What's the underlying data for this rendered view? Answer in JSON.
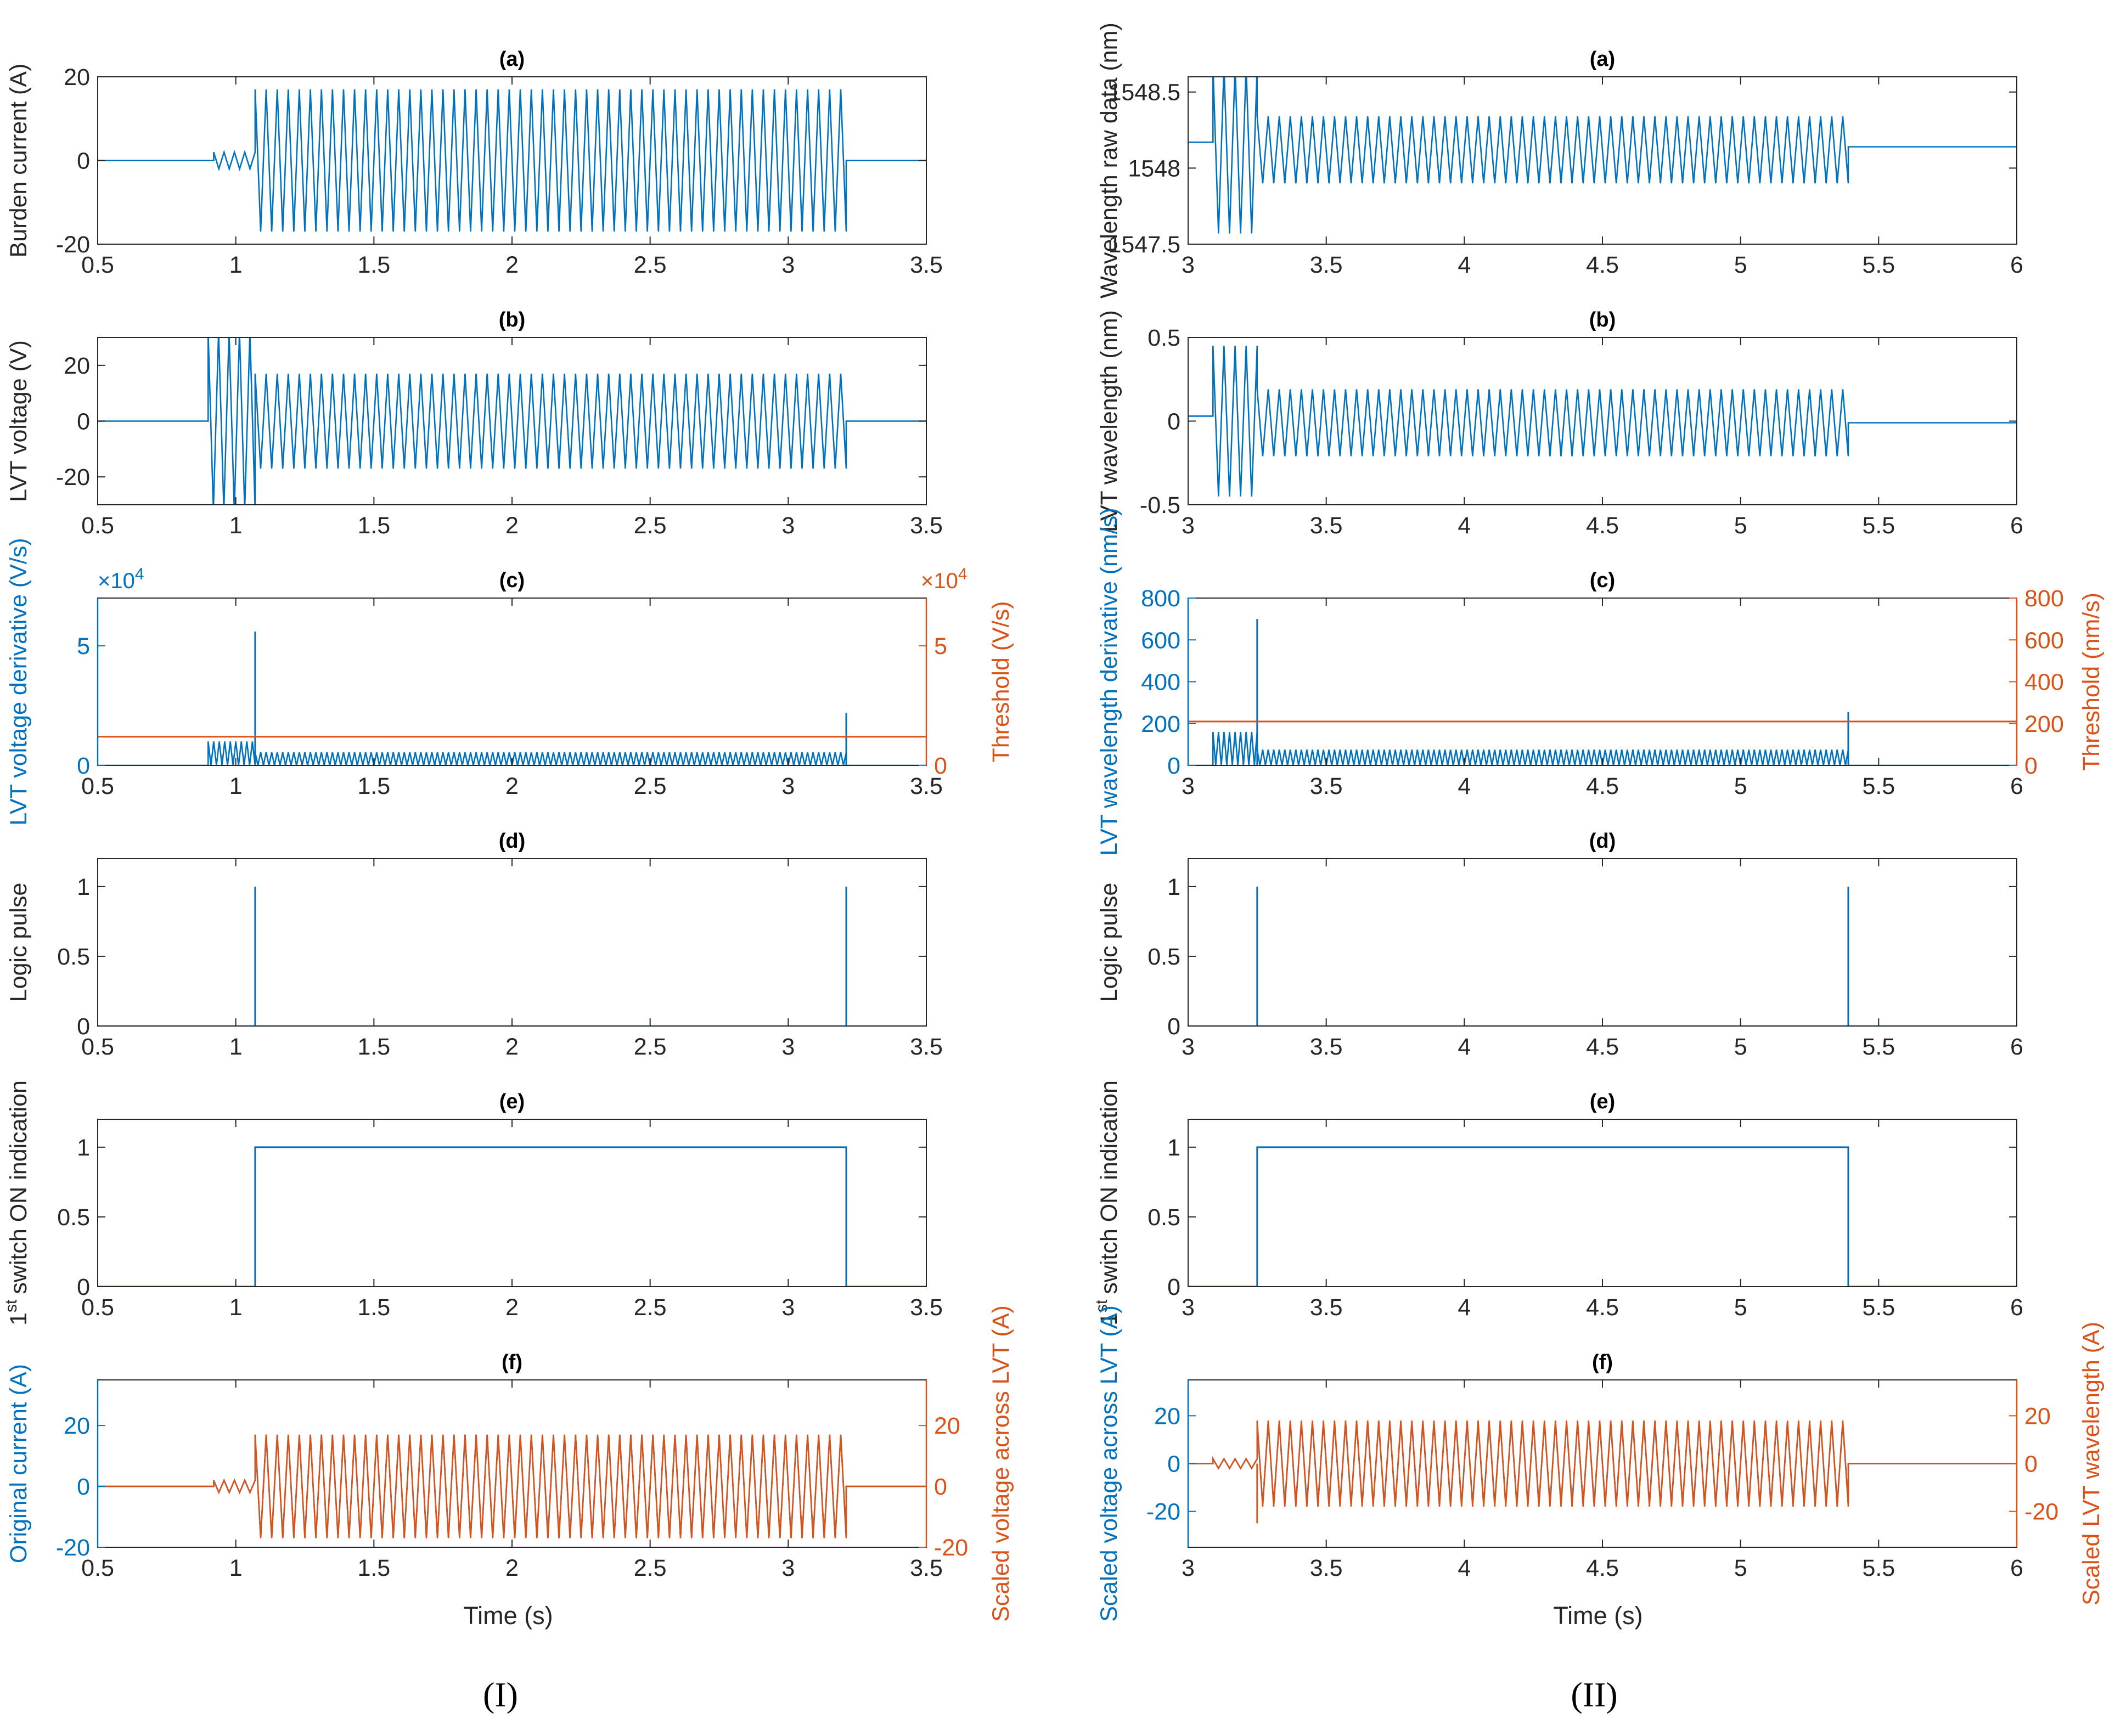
{
  "colors": {
    "blue": "#0072BD",
    "orange": "#D95319",
    "axis": "#262626"
  },
  "columns": [
    {
      "caption": "(I)",
      "xlim": [
        0.5,
        3.5
      ],
      "xticks": [
        "0.5",
        "1",
        "1.5",
        "2",
        "2.5",
        "3",
        "3.5"
      ],
      "xlabel": "Time (s)"
    },
    {
      "caption": "(II)",
      "xlim": [
        3,
        6
      ],
      "xticks": [
        "3",
        "3.5",
        "4",
        "4.5",
        "5",
        "5.5",
        "6"
      ],
      "xlabel": "Time (s)"
    }
  ],
  "chart_data": [
    {
      "id": "I-a",
      "type": "line",
      "title": "(a)",
      "ylabel": "Burden current (A)",
      "ylim": [
        -20,
        20
      ],
      "yticks": [
        "-20",
        "0",
        "20"
      ],
      "xlim": [
        0.5,
        3.5
      ],
      "series": [
        {
          "name": "Burden current",
          "color": "#0072BD",
          "kind": "osc",
          "segments": [
            {
              "from": 0.5,
              "to": 0.92,
              "amp": 0
            },
            {
              "from": 0.92,
              "to": 1.07,
              "amp": 2
            },
            {
              "from": 1.07,
              "to": 3.21,
              "amp": 17
            },
            {
              "from": 3.21,
              "to": 3.5,
              "amp": 0
            }
          ]
        }
      ]
    },
    {
      "id": "I-b",
      "type": "line",
      "title": "(b)",
      "ylabel": "LVT voltage (V)",
      "ylim": [
        -30,
        30
      ],
      "yticks": [
        "-20",
        "0",
        "20"
      ],
      "ytickvals": [
        -20,
        0,
        20
      ],
      "xlim": [
        0.5,
        3.5
      ],
      "series": [
        {
          "name": "LVT voltage",
          "color": "#0072BD",
          "kind": "osc",
          "segments": [
            {
              "from": 0.5,
              "to": 0.9,
              "amp": 0
            },
            {
              "from": 0.9,
              "to": 1.07,
              "amp": 32
            },
            {
              "from": 1.07,
              "to": 3.21,
              "amp": 17
            },
            {
              "from": 3.21,
              "to": 3.5,
              "amp": 0
            }
          ]
        }
      ]
    },
    {
      "id": "I-c",
      "type": "line",
      "title": "(c)",
      "ylabel": "LVT voltage derivative (V/s)",
      "ylabel_right": "Threshold (V/s)",
      "ylim": [
        0,
        7
      ],
      "yticks": [
        "0",
        "5"
      ],
      "ytickvals": [
        0,
        5
      ],
      "exponent_left": "×10",
      "exponent_right": "×10",
      "exponent_power": "4",
      "yticks_right": [
        "0",
        "5"
      ],
      "xlim": [
        0.5,
        3.5
      ],
      "series": [
        {
          "name": "LVT voltage derivative",
          "color": "#0072BD",
          "kind": "deriv",
          "segments": [
            {
              "from": 0.5,
              "to": 0.9,
              "amp": 0
            },
            {
              "from": 0.9,
              "to": 1.07,
              "amp": 1.0
            },
            {
              "from": 1.07,
              "to": 3.21,
              "amp": 0.55
            },
            {
              "from": 3.21,
              "to": 3.5,
              "amp": 0
            }
          ],
          "spikes": [
            {
              "x": 1.07,
              "y": 5.6
            },
            {
              "x": 3.21,
              "y": 2.2
            }
          ]
        },
        {
          "name": "Threshold",
          "color": "#D95319",
          "kind": "const",
          "y": 1.2,
          "axis": "right"
        }
      ]
    },
    {
      "id": "I-d",
      "type": "line",
      "title": "(d)",
      "ylabel": "Logic pulse",
      "ylim": [
        0,
        1.2
      ],
      "yticks": [
        "0",
        "0.5",
        "1"
      ],
      "ytickvals": [
        0,
        0.5,
        1
      ],
      "xlim": [
        0.5,
        3.5
      ],
      "series": [
        {
          "name": "Logic pulse",
          "color": "#0072BD",
          "kind": "pulses",
          "x": [
            1.07,
            3.21
          ],
          "y": 1
        }
      ]
    },
    {
      "id": "I-e",
      "type": "line",
      "title": "(e)",
      "ylabel": "switch ON indication",
      "ylabel_prefix": "1",
      "ylabel_sup": "st",
      "ylim": [
        0,
        1.2
      ],
      "yticks": [
        "0",
        "0.5",
        "1"
      ],
      "ytickvals": [
        0,
        0.5,
        1
      ],
      "xlim": [
        0.5,
        3.5
      ],
      "series": [
        {
          "name": "1st switch ON indication",
          "color": "#0072BD",
          "kind": "step",
          "on": 1.07,
          "off": 3.21,
          "y": 1
        }
      ]
    },
    {
      "id": "I-f",
      "type": "line",
      "title": "(f)",
      "ylabel": "Original current (A)",
      "ylabel_right": "Scaled voltage across LVT (A)",
      "ylim": [
        -20,
        35
      ],
      "yticks": [
        "-20",
        "0",
        "20"
      ],
      "ytickvals": [
        -20,
        0,
        20
      ],
      "yticks_right": [
        "-20",
        "0",
        "20"
      ],
      "xlim": [
        0.5,
        3.5
      ],
      "series": [
        {
          "name": "Original current",
          "color": "#0072BD",
          "kind": "osc",
          "segments": [
            {
              "from": 0.5,
              "to": 0.92,
              "amp": 0
            },
            {
              "from": 0.92,
              "to": 1.07,
              "amp": 2
            },
            {
              "from": 1.07,
              "to": 3.21,
              "amp": 17
            },
            {
              "from": 3.21,
              "to": 3.5,
              "amp": 0
            }
          ]
        },
        {
          "name": "Scaled voltage across LVT",
          "color": "#D95319",
          "kind": "osc",
          "segments": [
            {
              "from": 0.5,
              "to": 0.92,
              "amp": 0
            },
            {
              "from": 0.92,
              "to": 1.07,
              "amp": 2
            },
            {
              "from": 1.07,
              "to": 3.21,
              "amp": 17
            },
            {
              "from": 3.21,
              "to": 3.5,
              "amp": 0
            }
          ]
        }
      ]
    },
    {
      "id": "II-a",
      "type": "line",
      "title": "(a)",
      "ylabel": "Wavelength raw data (nm)",
      "ylim": [
        1547.5,
        1548.6
      ],
      "yticks": [
        "1547.5",
        "1548",
        "1548.5"
      ],
      "ytickvals": [
        1547.5,
        1548,
        1548.5
      ],
      "xlim": [
        3,
        6
      ],
      "series": [
        {
          "name": "Wavelength raw data",
          "color": "#0072BD",
          "kind": "osc",
          "base": 1548.12,
          "segments": [
            {
              "from": 3.0,
              "to": 3.09,
              "amp": 0,
              "offset": 1548.17
            },
            {
              "from": 3.09,
              "to": 3.25,
              "amp": 0.55,
              "offset": 1548.12
            },
            {
              "from": 3.25,
              "to": 5.39,
              "amp": 0.22,
              "offset": 1548.12
            },
            {
              "from": 5.39,
              "to": 6.0,
              "amp": 0,
              "offset": 1548.14
            }
          ]
        }
      ]
    },
    {
      "id": "II-b",
      "type": "line",
      "title": "(b)",
      "ylabel": "LVT wavelength (nm)",
      "ylim": [
        -0.5,
        0.5
      ],
      "yticks": [
        "-0.5",
        "0",
        "0.5"
      ],
      "ytickvals": [
        -0.5,
        0,
        0.5
      ],
      "xlim": [
        3,
        6
      ],
      "series": [
        {
          "name": "LVT wavelength",
          "color": "#0072BD",
          "kind": "osc",
          "segments": [
            {
              "from": 3.0,
              "to": 3.09,
              "amp": 0,
              "offset": 0.03
            },
            {
              "from": 3.09,
              "to": 3.25,
              "amp": 0.45,
              "offset": 0
            },
            {
              "from": 3.25,
              "to": 5.39,
              "amp": 0.2,
              "offset": -0.01
            },
            {
              "from": 5.39,
              "to": 6.0,
              "amp": 0,
              "offset": -0.01
            }
          ]
        }
      ]
    },
    {
      "id": "II-c",
      "type": "line",
      "title": "(c)",
      "ylabel": "LVT wavelength derivative (nm/s)",
      "ylabel_right": "Threshold (nm/s)",
      "ylim": [
        0,
        800
      ],
      "yticks": [
        "0",
        "200",
        "400",
        "600",
        "800"
      ],
      "ytickvals": [
        0,
        200,
        400,
        600,
        800
      ],
      "yticks_right": [
        "0",
        "200",
        "400",
        "600",
        "800"
      ],
      "xlim": [
        3,
        6
      ],
      "series": [
        {
          "name": "LVT wavelength derivative",
          "color": "#0072BD",
          "kind": "deriv",
          "segments": [
            {
              "from": 3.0,
              "to": 3.09,
              "amp": 0
            },
            {
              "from": 3.09,
              "to": 3.25,
              "amp": 160
            },
            {
              "from": 3.25,
              "to": 5.39,
              "amp": 75
            },
            {
              "from": 5.39,
              "to": 6.0,
              "amp": 0
            }
          ],
          "spikes": [
            {
              "x": 3.25,
              "y": 700
            },
            {
              "x": 5.39,
              "y": 255
            }
          ]
        },
        {
          "name": "Threshold",
          "color": "#D95319",
          "kind": "const",
          "y": 210,
          "axis": "right"
        }
      ]
    },
    {
      "id": "II-d",
      "type": "line",
      "title": "(d)",
      "ylabel": "Logic pulse",
      "ylim": [
        0,
        1.2
      ],
      "yticks": [
        "0",
        "0.5",
        "1"
      ],
      "ytickvals": [
        0,
        0.5,
        1
      ],
      "xlim": [
        3,
        6
      ],
      "series": [
        {
          "name": "Logic pulse",
          "color": "#0072BD",
          "kind": "pulses",
          "x": [
            3.25,
            5.39
          ],
          "y": 1
        }
      ]
    },
    {
      "id": "II-e",
      "type": "line",
      "title": "(e)",
      "ylabel": "switch ON indication",
      "ylabel_prefix": "1",
      "ylabel_sup": "st",
      "ylim": [
        0,
        1.2
      ],
      "yticks": [
        "0",
        "0.5",
        "1"
      ],
      "ytickvals": [
        0,
        0.5,
        1
      ],
      "xlim": [
        3,
        6
      ],
      "series": [
        {
          "name": "1st switch ON indication",
          "color": "#0072BD",
          "kind": "step",
          "on": 3.25,
          "off": 5.39,
          "y": 1
        }
      ]
    },
    {
      "id": "II-f",
      "type": "line",
      "title": "(f)",
      "ylabel": "Scaled voltage across LVT (A)",
      "ylabel_right": "Scaled LVT wavelength (A)",
      "ylim": [
        -35,
        35
      ],
      "yticks": [
        "-20",
        "0",
        "20"
      ],
      "ytickvals": [
        -20,
        0,
        20
      ],
      "yticks_right": [
        "-20",
        "0",
        "20"
      ],
      "xlim": [
        3,
        6
      ],
      "series": [
        {
          "name": "Scaled voltage across LVT",
          "color": "#0072BD",
          "kind": "osc",
          "segments": [
            {
              "from": 3.0,
              "to": 3.09,
              "amp": 0
            },
            {
              "from": 3.09,
              "to": 3.25,
              "amp": 2
            },
            {
              "from": 3.25,
              "to": 5.39,
              "amp": 17
            },
            {
              "from": 5.39,
              "to": 6.0,
              "amp": 0
            }
          ]
        },
        {
          "name": "Scaled LVT wavelength",
          "color": "#D95319",
          "kind": "osc",
          "segments": [
            {
              "from": 3.0,
              "to": 3.09,
              "amp": 0
            },
            {
              "from": 3.09,
              "to": 3.25,
              "amp": 2
            },
            {
              "from": 3.25,
              "to": 5.39,
              "amp": 18
            },
            {
              "from": 5.39,
              "to": 6.0,
              "amp": 0
            }
          ],
          "spikes": [
            {
              "x": 3.25,
              "y": -25
            }
          ]
        }
      ]
    }
  ]
}
